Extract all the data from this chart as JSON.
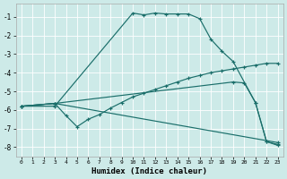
{
  "xlabel": "Humidex (Indice chaleur)",
  "background_color": "#cdeae8",
  "grid_color": "#ffffff",
  "line_color": "#1a6e6a",
  "xlim": [
    -0.5,
    23.5
  ],
  "ylim": [
    -8.5,
    -0.3
  ],
  "xticks": [
    0,
    1,
    2,
    3,
    4,
    5,
    6,
    7,
    8,
    9,
    10,
    11,
    12,
    13,
    14,
    15,
    16,
    17,
    18,
    19,
    20,
    21,
    22,
    23
  ],
  "yticks": [
    -8,
    -7,
    -6,
    -5,
    -4,
    -3,
    -2,
    -1
  ],
  "curve1_x": [
    0,
    3,
    10,
    11,
    12,
    13,
    14,
    15,
    16,
    17,
    18,
    19,
    21,
    22,
    23
  ],
  "curve1_y": [
    -5.8,
    -5.8,
    -0.8,
    -0.9,
    -0.8,
    -0.85,
    -0.85,
    -0.85,
    -1.1,
    -2.2,
    -2.85,
    -3.4,
    -5.6,
    -7.7,
    -7.9
  ],
  "curve2_x": [
    0,
    3,
    4,
    5,
    6,
    7,
    8,
    9,
    10,
    11,
    12,
    13,
    14,
    15,
    16,
    17,
    18,
    19,
    20,
    21,
    22,
    23
  ],
  "curve2_y": [
    -5.8,
    -5.65,
    -6.3,
    -6.9,
    -6.5,
    -6.25,
    -5.9,
    -5.6,
    -5.3,
    -5.1,
    -4.9,
    -4.7,
    -4.5,
    -4.3,
    -4.15,
    -4.0,
    -3.9,
    -3.8,
    -3.7,
    -3.6,
    -3.5,
    -3.5
  ],
  "curve3_x": [
    0,
    3,
    19,
    20,
    21,
    22,
    23
  ],
  "curve3_y": [
    -5.8,
    -5.65,
    -4.5,
    -4.55,
    -5.6,
    -7.7,
    -7.85
  ],
  "curve4_x": [
    0,
    3,
    23
  ],
  "curve4_y": [
    -5.8,
    -5.65,
    -7.75
  ]
}
